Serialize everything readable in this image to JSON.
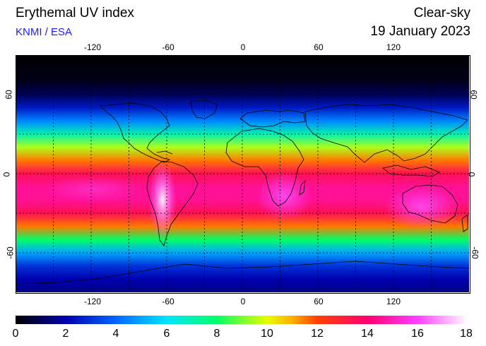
{
  "header": {
    "title": "Erythemal UV index",
    "credit": "KNMI / ESA",
    "mode": "Clear-sky",
    "date": "19 January 2023"
  },
  "map": {
    "projection": "equirectangular",
    "lon_range": [
      -180,
      180
    ],
    "lat_range": [
      -90,
      90
    ],
    "lon_ticks": [
      "-120",
      "-60",
      "0",
      "60",
      "120"
    ],
    "lat_ticks_left": [
      "60",
      "0",
      "-60"
    ],
    "lat_ticks_right": [
      "60",
      "0",
      "-60"
    ],
    "uv_profile_by_latitude": [
      {
        "lat": 90,
        "uv": 0
      },
      {
        "lat": 70,
        "uv": 0.3
      },
      {
        "lat": 60,
        "uv": 1
      },
      {
        "lat": 50,
        "uv": 2.5
      },
      {
        "lat": 40,
        "uv": 4.5
      },
      {
        "lat": 30,
        "uv": 7
      },
      {
        "lat": 20,
        "uv": 9.5
      },
      {
        "lat": 10,
        "uv": 11.5
      },
      {
        "lat": 0,
        "uv": 13.5
      },
      {
        "lat": -10,
        "uv": 14.5
      },
      {
        "lat": -20,
        "uv": 14.5
      },
      {
        "lat": -30,
        "uv": 13.5
      },
      {
        "lat": -40,
        "uv": 11.5
      },
      {
        "lat": -50,
        "uv": 8
      },
      {
        "lat": -60,
        "uv": 5
      },
      {
        "lat": -70,
        "uv": 3
      },
      {
        "lat": -80,
        "uv": 2
      },
      {
        "lat": -90,
        "uv": 1.5
      }
    ]
  },
  "colorbar": {
    "min": 0,
    "max": 18,
    "labels": [
      "0",
      "2",
      "4",
      "6",
      "8",
      "10",
      "12",
      "14",
      "16",
      "18"
    ],
    "stops": [
      {
        "v": 0,
        "color": "#000000"
      },
      {
        "v": 2,
        "color": "#0000b0"
      },
      {
        "v": 4,
        "color": "#0066ff"
      },
      {
        "v": 6,
        "color": "#00e5ff"
      },
      {
        "v": 8,
        "color": "#00ff66"
      },
      {
        "v": 10,
        "color": "#e6ff00"
      },
      {
        "v": 11,
        "color": "#ffb000"
      },
      {
        "v": 12,
        "color": "#ff4000"
      },
      {
        "v": 14,
        "color": "#ff0070"
      },
      {
        "v": 16,
        "color": "#ff40ff"
      },
      {
        "v": 18,
        "color": "#ffffff"
      }
    ]
  }
}
